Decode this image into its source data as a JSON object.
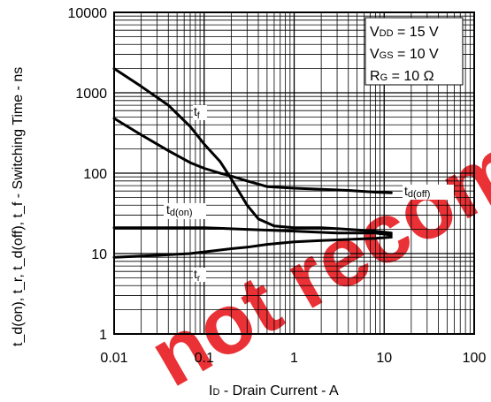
{
  "watermark": {
    "text": "not recommended",
    "color": "#e8262c"
  },
  "chart_data": {
    "type": "line",
    "x_scale": "log",
    "y_scale": "log",
    "xlim": [
      0.01,
      100
    ],
    "ylim": [
      1,
      10000
    ],
    "grid": true,
    "x_ticks": [
      "0.01",
      "0.1",
      "1",
      "10",
      "100"
    ],
    "y_ticks": [
      "1",
      "10",
      "100",
      "1000",
      "10000"
    ],
    "xlabel": {
      "main": "I",
      "sub": "D",
      "rest": " - Drain Current - A"
    },
    "ylabel": "t_d(on), t_r, t_d(off), t_f - Switching Time - ns",
    "conditions": [
      {
        "name": "V",
        "sub": "DD",
        "value": " = 15 V"
      },
      {
        "name": "V",
        "sub": "GS",
        "value": " = 10 V"
      },
      {
        "name": "R",
        "sub": "G",
        "value": " = 10 Ω"
      }
    ],
    "series": [
      {
        "name": "t_f",
        "label_main": "t",
        "label_sub": "f",
        "x": [
          0.01,
          0.02,
          0.04,
          0.07,
          0.1,
          0.15,
          0.2,
          0.3,
          0.4,
          0.6,
          1,
          2,
          4,
          8,
          12
        ],
        "y": [
          2000,
          1200,
          700,
          380,
          230,
          140,
          85,
          40,
          27,
          22,
          21,
          21,
          20,
          19,
          18
        ]
      },
      {
        "name": "t_d(off)",
        "label_main": "t",
        "label_sub": "d(off)",
        "x": [
          0.01,
          0.02,
          0.04,
          0.07,
          0.1,
          0.15,
          0.2,
          0.3,
          0.5,
          1,
          2,
          4,
          8,
          12
        ],
        "y": [
          480,
          300,
          190,
          135,
          115,
          100,
          92,
          80,
          68,
          65,
          63,
          61,
          58,
          57
        ]
      },
      {
        "name": "t_d(on)",
        "label_main": "t",
        "label_sub": "d(on)",
        "x": [
          0.01,
          0.03,
          0.1,
          0.3,
          1,
          3,
          8,
          12
        ],
        "y": [
          21,
          21,
          21,
          20,
          19,
          18,
          18,
          17
        ]
      },
      {
        "name": "t_r",
        "label_main": "t",
        "label_sub": "r",
        "x": [
          0.01,
          0.03,
          0.07,
          0.1,
          0.2,
          0.3,
          0.5,
          1,
          2,
          4,
          8,
          12
        ],
        "y": [
          9,
          9.5,
          10,
          10.5,
          11.5,
          12,
          13,
          14,
          14.5,
          15,
          15.5,
          16
        ]
      }
    ]
  }
}
